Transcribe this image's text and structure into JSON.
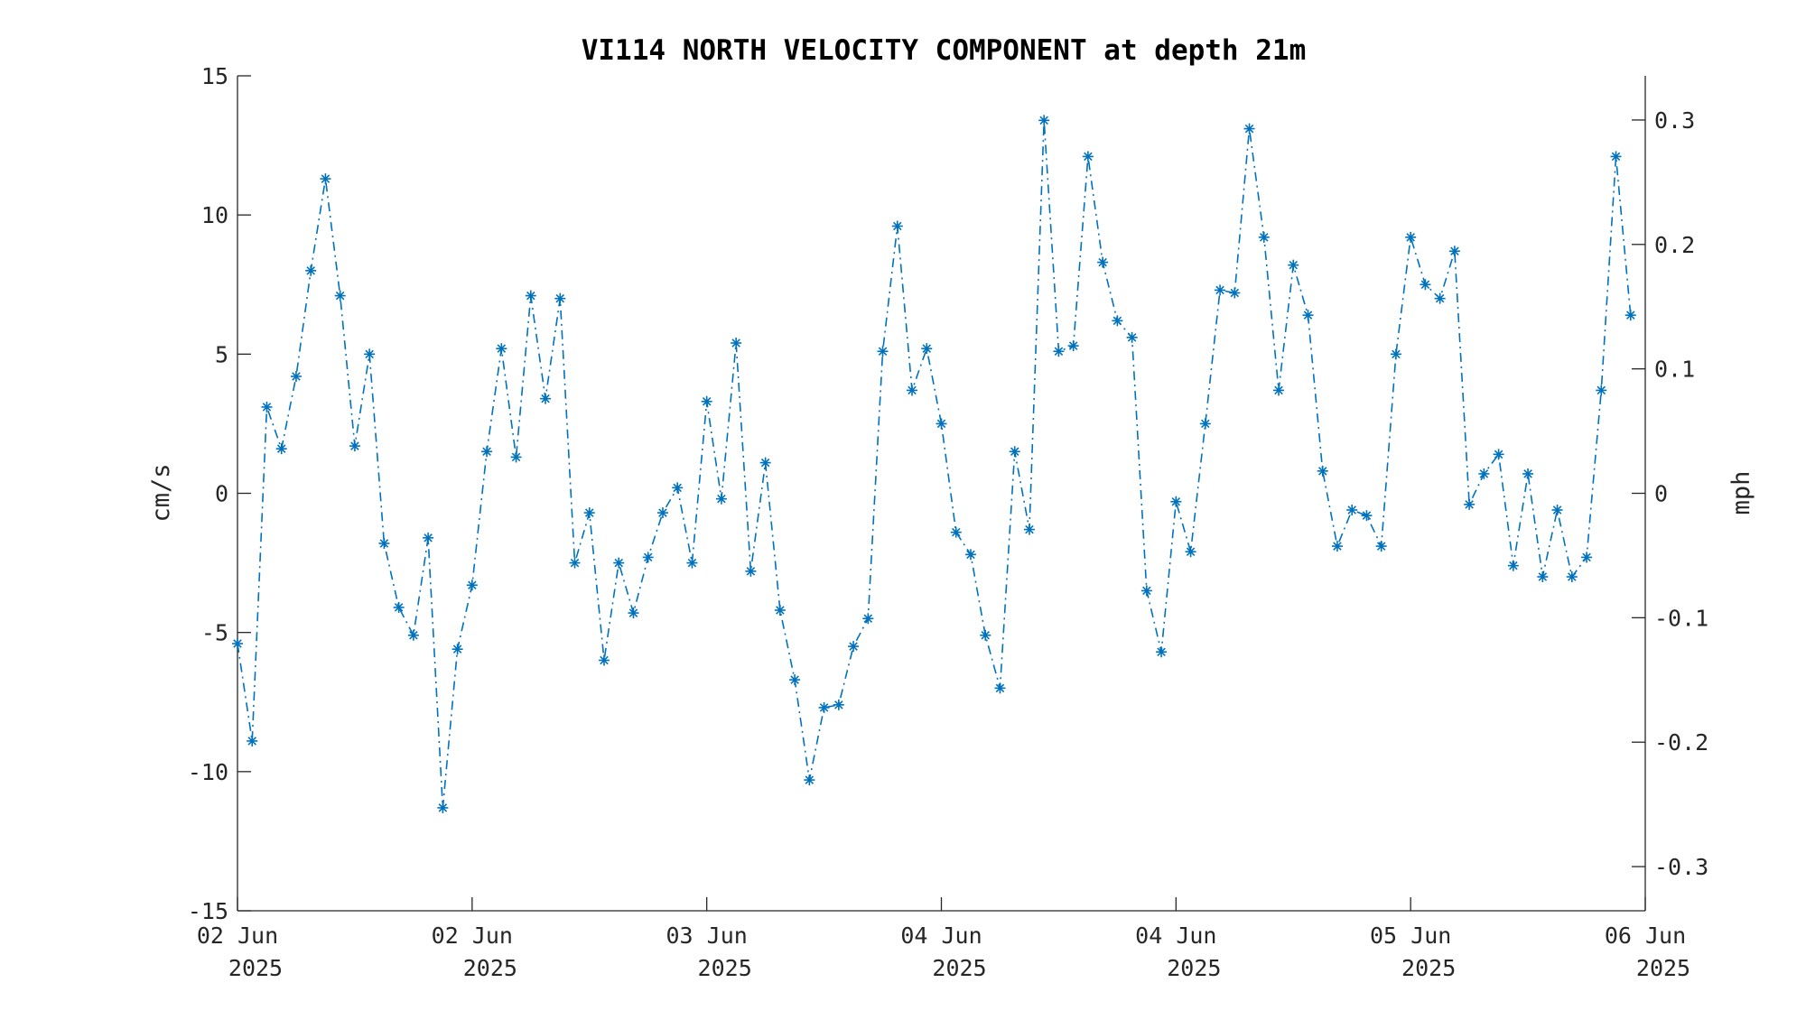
{
  "chart_data": {
    "type": "line",
    "title": "VI114 NORTH VELOCITY COMPONENT at depth 21m",
    "ylabel_left": "cm/s",
    "ylabel_right": "mph",
    "ylim_left": [
      -15,
      15
    ],
    "ylim_right": [
      -0.3355,
      0.3355
    ],
    "yticks_left": [
      15,
      10,
      5,
      0,
      -5,
      -10,
      -15
    ],
    "yticks_left_labels": [
      "15",
      "10",
      "5",
      "0",
      "-5",
      "-10",
      "-15"
    ],
    "yticks_right": [
      0.3,
      0.2,
      0.1,
      0,
      -0.1,
      -0.2,
      -0.3
    ],
    "yticks_right_labels": [
      "0.3",
      "0.2",
      "0.1",
      "0",
      "-0.1",
      "-0.2",
      "-0.3"
    ],
    "xlim": [
      0,
      95
    ],
    "x_unit": "hours after 02 Jun 2025 00:00",
    "xticks": [
      {
        "x": 0,
        "line1": "02 Jun",
        "line2": "2025"
      },
      {
        "x": 16,
        "line1": "02 Jun",
        "line2": "2025"
      },
      {
        "x": 32,
        "line1": "03 Jun",
        "line2": "2025"
      },
      {
        "x": 48,
        "line1": "04 Jun",
        "line2": "2025"
      },
      {
        "x": 64,
        "line1": "04 Jun",
        "line2": "2025"
      },
      {
        "x": 80,
        "line1": "05 Jun",
        "line2": "2025"
      },
      {
        "x": 96,
        "line1": "06 Jun",
        "line2": "2025"
      }
    ],
    "grid": false,
    "legend": "none",
    "series": [
      {
        "color": "#0072BD",
        "marker": "asterisk",
        "linestyle": "dash-dot",
        "x": [
          0,
          1,
          2,
          3,
          4,
          5,
          6,
          7,
          8,
          9,
          10,
          11,
          12,
          13,
          14,
          15,
          16,
          17,
          18,
          19,
          20,
          21,
          22,
          23,
          24,
          25,
          26,
          27,
          28,
          29,
          30,
          31,
          32,
          33,
          34,
          35,
          36,
          37,
          38,
          39,
          40,
          41,
          42,
          43,
          44,
          45,
          46,
          47,
          48,
          49,
          50,
          51,
          52,
          53,
          54,
          55,
          56,
          57,
          58,
          59,
          60,
          61,
          62,
          63,
          64,
          65,
          66,
          67,
          68,
          69,
          70,
          71,
          72,
          73,
          74,
          75,
          76,
          77,
          78,
          79,
          80,
          81,
          82,
          83,
          84,
          85,
          86,
          87,
          88,
          89,
          90,
          91,
          92,
          93,
          94,
          95
        ],
        "values": [
          -5.4,
          -8.9,
          3.1,
          1.6,
          4.2,
          8.0,
          11.3,
          7.1,
          1.7,
          5.0,
          -1.8,
          -4.1,
          -5.1,
          -1.6,
          -11.3,
          -5.6,
          -3.3,
          1.5,
          5.2,
          1.3,
          7.1,
          3.4,
          7.0,
          -2.5,
          -0.7,
          -6.0,
          -2.5,
          -4.3,
          -2.3,
          -0.7,
          0.2,
          -2.5,
          3.3,
          -0.2,
          5.4,
          -2.8,
          1.1,
          -4.2,
          -6.7,
          -10.3,
          -7.7,
          -7.6,
          -5.5,
          -4.5,
          5.1,
          9.6,
          3.7,
          5.2,
          2.5,
          -1.4,
          -2.2,
          -5.1,
          -7.0,
          1.5,
          -1.3,
          13.4,
          5.1,
          5.3,
          12.1,
          8.3,
          6.2,
          5.6,
          -3.5,
          -5.7,
          -0.3,
          -2.1,
          2.5,
          7.3,
          7.2,
          13.1,
          9.2,
          3.7,
          8.2,
          6.4,
          0.8,
          -1.9,
          -0.6,
          -0.8,
          -1.9,
          5.0,
          9.2,
          7.5,
          7.0,
          8.7,
          -0.4,
          0.7,
          1.4,
          -2.6,
          0.7,
          -3.0,
          -0.6,
          -3.0,
          -2.3,
          3.7,
          12.1,
          6.4
        ]
      }
    ]
  }
}
